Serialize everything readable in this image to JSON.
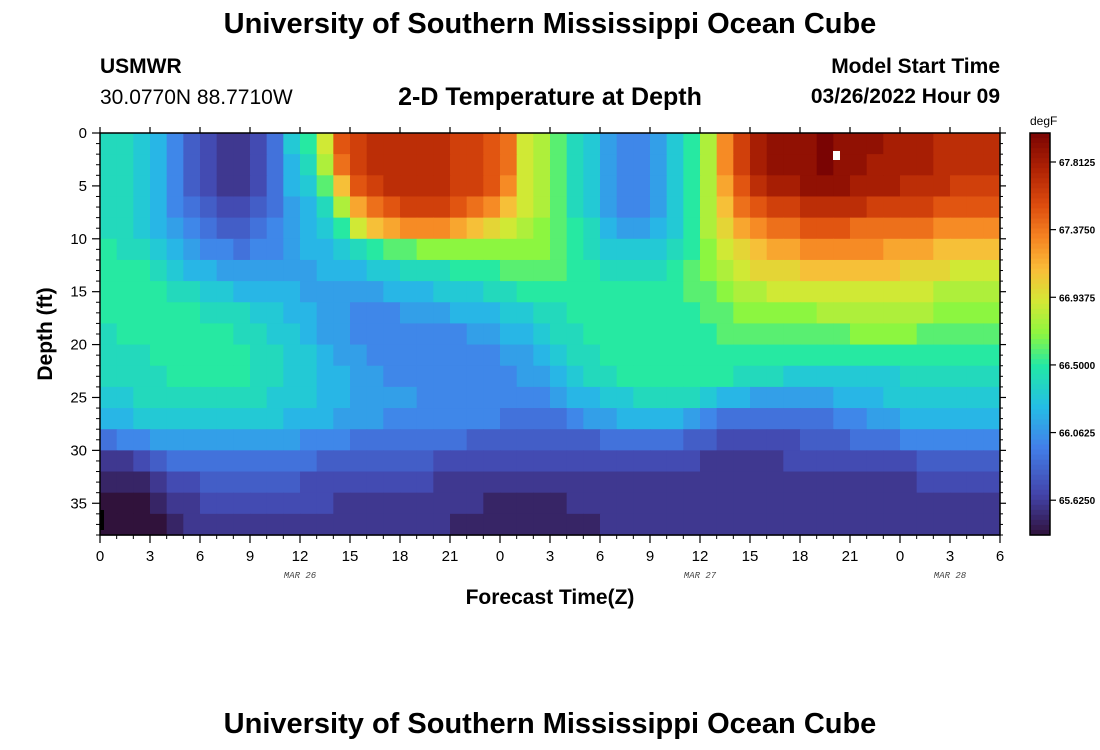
{
  "header": {
    "title": "University of Southern Mississippi Ocean Cube",
    "station": "USMWR",
    "coords": "30.0770N  88.7710W",
    "plot_title": "2-D Temperature at Depth",
    "start_label": "Model Start Time",
    "start_value": "03/26/2022 Hour 09"
  },
  "footer": {
    "title": "University of Southern Mississippi Ocean Cube"
  },
  "chart_data": {
    "type": "heatmap",
    "xlabel": "Forecast Time(Z)",
    "ylabel": "Depth (ft)",
    "colorbar_unit": "degF",
    "x_hours_range": [
      0,
      54
    ],
    "x_tick_labels": [
      "0",
      "3",
      "6",
      "9",
      "12",
      "15",
      "18",
      "21",
      "0",
      "3",
      "6",
      "9",
      "12",
      "15",
      "18",
      "21",
      "0",
      "3",
      "6"
    ],
    "date_labels": [
      {
        "label": "MAR 26",
        "hour": 12
      },
      {
        "label": "MAR 27",
        "hour": 36
      },
      {
        "label": "MAR 28",
        "hour": 51
      }
    ],
    "ylim": [
      0,
      38
    ],
    "y_ticks": [
      0,
      5,
      10,
      15,
      20,
      25,
      30,
      35
    ],
    "colorbar_ticks": [
      "67.8125",
      "67.3750",
      "66.9375",
      "66.5000",
      "66.0625",
      "65.6250"
    ],
    "colorbar_tick_values": [
      67.8125,
      67.375,
      66.9375,
      66.5,
      66.0625,
      65.625
    ],
    "colorbar_range": [
      65.4,
      68.0
    ],
    "grid_hours_start": 0,
    "grid_hours_step": 1,
    "grid_depth_start": 0,
    "grid_depth_step": 2,
    "values": [
      [
        66.4,
        66.4,
        66.3,
        66.2,
        66.0,
        65.8,
        65.7,
        65.6,
        65.6,
        65.7,
        65.9,
        66.3,
        66.5,
        66.9,
        67.5,
        67.6,
        67.7,
        67.7,
        67.7,
        67.7,
        67.7,
        67.6,
        67.6,
        67.5,
        67.4,
        66.9,
        66.8,
        66.6,
        66.4,
        66.3,
        66.1,
        66.0,
        66.0,
        66.1,
        66.3,
        66.5,
        66.8,
        67.3,
        67.6,
        67.8,
        67.9,
        67.9,
        67.9,
        68.0,
        67.9,
        67.9,
        67.9,
        67.8,
        67.8,
        67.8,
        67.7,
        67.7,
        67.7,
        67.7,
        67.7
      ],
      [
        66.4,
        66.4,
        66.3,
        66.2,
        66.0,
        65.8,
        65.7,
        65.6,
        65.6,
        65.7,
        65.9,
        66.2,
        66.4,
        66.8,
        67.4,
        67.6,
        67.7,
        67.7,
        67.7,
        67.7,
        67.7,
        67.6,
        67.6,
        67.5,
        67.4,
        66.9,
        66.8,
        66.6,
        66.4,
        66.3,
        66.1,
        66.0,
        66.0,
        66.1,
        66.3,
        66.5,
        66.8,
        67.3,
        67.6,
        67.8,
        67.9,
        67.9,
        67.9,
        68.0,
        67.9,
        67.9,
        67.8,
        67.8,
        67.8,
        67.8,
        67.7,
        67.7,
        67.7,
        67.7,
        67.7
      ],
      [
        66.4,
        66.4,
        66.3,
        66.2,
        66.0,
        65.8,
        65.7,
        65.6,
        65.6,
        65.7,
        65.9,
        66.2,
        66.3,
        66.6,
        67.1,
        67.5,
        67.6,
        67.7,
        67.7,
        67.7,
        67.7,
        67.6,
        67.6,
        67.5,
        67.3,
        66.9,
        66.8,
        66.6,
        66.4,
        66.3,
        66.1,
        66.0,
        66.0,
        66.1,
        66.3,
        66.5,
        66.8,
        67.2,
        67.5,
        67.7,
        67.8,
        67.8,
        67.9,
        67.9,
        67.9,
        67.8,
        67.8,
        67.8,
        67.7,
        67.7,
        67.7,
        67.6,
        67.6,
        67.6,
        67.6
      ],
      [
        66.4,
        66.4,
        66.3,
        66.2,
        66.0,
        65.9,
        65.8,
        65.7,
        65.7,
        65.8,
        65.9,
        66.1,
        66.2,
        66.4,
        66.8,
        67.2,
        67.4,
        67.5,
        67.6,
        67.6,
        67.6,
        67.5,
        67.4,
        67.3,
        67.1,
        66.9,
        66.8,
        66.6,
        66.4,
        66.3,
        66.1,
        66.0,
        66.0,
        66.1,
        66.3,
        66.5,
        66.8,
        67.1,
        67.4,
        67.5,
        67.6,
        67.6,
        67.7,
        67.7,
        67.7,
        67.7,
        67.6,
        67.6,
        67.6,
        67.6,
        67.5,
        67.5,
        67.5,
        67.5,
        67.5
      ],
      [
        66.4,
        66.4,
        66.3,
        66.2,
        66.1,
        66.0,
        65.9,
        65.8,
        65.8,
        65.9,
        66.0,
        66.1,
        66.2,
        66.3,
        66.5,
        66.9,
        67.1,
        67.2,
        67.3,
        67.3,
        67.3,
        67.2,
        67.1,
        67.0,
        66.9,
        66.8,
        66.7,
        66.6,
        66.5,
        66.4,
        66.2,
        66.1,
        66.1,
        66.2,
        66.3,
        66.5,
        66.8,
        67.0,
        67.2,
        67.3,
        67.4,
        67.4,
        67.5,
        67.5,
        67.5,
        67.4,
        67.4,
        67.4,
        67.4,
        67.4,
        67.3,
        67.3,
        67.3,
        67.3,
        67.3
      ],
      [
        66.5,
        66.4,
        66.4,
        66.3,
        66.2,
        66.1,
        66.0,
        66.0,
        65.9,
        66.0,
        66.0,
        66.1,
        66.2,
        66.2,
        66.3,
        66.4,
        66.5,
        66.6,
        66.6,
        66.7,
        66.7,
        66.7,
        66.7,
        66.7,
        66.7,
        66.7,
        66.7,
        66.6,
        66.5,
        66.4,
        66.3,
        66.3,
        66.3,
        66.3,
        66.4,
        66.5,
        66.7,
        66.9,
        67.0,
        67.1,
        67.2,
        67.2,
        67.3,
        67.3,
        67.3,
        67.3,
        67.3,
        67.2,
        67.2,
        67.2,
        67.1,
        67.1,
        67.1,
        67.1,
        67.1
      ],
      [
        66.5,
        66.5,
        66.5,
        66.4,
        66.3,
        66.2,
        66.2,
        66.1,
        66.1,
        66.1,
        66.1,
        66.1,
        66.1,
        66.2,
        66.2,
        66.2,
        66.3,
        66.3,
        66.4,
        66.4,
        66.4,
        66.5,
        66.5,
        66.5,
        66.6,
        66.6,
        66.6,
        66.6,
        66.5,
        66.5,
        66.4,
        66.4,
        66.4,
        66.4,
        66.5,
        66.6,
        66.7,
        66.8,
        66.9,
        67.0,
        67.0,
        67.0,
        67.1,
        67.1,
        67.1,
        67.1,
        67.1,
        67.1,
        67.0,
        67.0,
        67.0,
        66.9,
        66.9,
        66.9,
        66.9
      ],
      [
        66.5,
        66.5,
        66.5,
        66.5,
        66.4,
        66.4,
        66.3,
        66.3,
        66.2,
        66.2,
        66.2,
        66.2,
        66.1,
        66.1,
        66.1,
        66.1,
        66.1,
        66.2,
        66.2,
        66.2,
        66.3,
        66.3,
        66.3,
        66.4,
        66.4,
        66.5,
        66.5,
        66.5,
        66.5,
        66.5,
        66.5,
        66.5,
        66.5,
        66.5,
        66.5,
        66.6,
        66.6,
        66.7,
        66.8,
        66.8,
        66.9,
        66.9,
        66.9,
        66.9,
        66.9,
        66.9,
        66.9,
        66.9,
        66.9,
        66.9,
        66.8,
        66.8,
        66.8,
        66.8,
        66.8
      ],
      [
        66.5,
        66.5,
        66.5,
        66.5,
        66.5,
        66.5,
        66.4,
        66.4,
        66.4,
        66.3,
        66.3,
        66.2,
        66.2,
        66.1,
        66.1,
        66.0,
        66.0,
        66.0,
        66.1,
        66.1,
        66.1,
        66.2,
        66.2,
        66.2,
        66.3,
        66.3,
        66.4,
        66.4,
        66.5,
        66.5,
        66.5,
        66.5,
        66.5,
        66.5,
        66.5,
        66.5,
        66.6,
        66.6,
        66.7,
        66.7,
        66.7,
        66.7,
        66.7,
        66.8,
        66.8,
        66.8,
        66.8,
        66.8,
        66.8,
        66.8,
        66.7,
        66.7,
        66.7,
        66.7,
        66.7
      ],
      [
        66.4,
        66.5,
        66.5,
        66.5,
        66.5,
        66.5,
        66.5,
        66.5,
        66.4,
        66.4,
        66.3,
        66.3,
        66.2,
        66.1,
        66.1,
        66.0,
        66.0,
        66.0,
        66.0,
        66.0,
        66.0,
        66.0,
        66.1,
        66.1,
        66.2,
        66.2,
        66.3,
        66.4,
        66.4,
        66.5,
        66.5,
        66.5,
        66.5,
        66.5,
        66.5,
        66.5,
        66.5,
        66.6,
        66.6,
        66.6,
        66.6,
        66.6,
        66.6,
        66.6,
        66.6,
        66.7,
        66.7,
        66.7,
        66.7,
        66.6,
        66.6,
        66.6,
        66.6,
        66.6,
        66.6
      ],
      [
        66.4,
        66.4,
        66.4,
        66.5,
        66.5,
        66.5,
        66.5,
        66.5,
        66.5,
        66.4,
        66.4,
        66.3,
        66.3,
        66.2,
        66.1,
        66.1,
        66.0,
        66.0,
        66.0,
        66.0,
        66.0,
        66.0,
        66.0,
        66.0,
        66.1,
        66.1,
        66.2,
        66.3,
        66.4,
        66.4,
        66.5,
        66.5,
        66.5,
        66.5,
        66.5,
        66.5,
        66.5,
        66.5,
        66.5,
        66.5,
        66.5,
        66.5,
        66.5,
        66.5,
        66.5,
        66.5,
        66.5,
        66.5,
        66.5,
        66.5,
        66.5,
        66.5,
        66.5,
        66.5,
        66.5
      ],
      [
        66.4,
        66.4,
        66.4,
        66.4,
        66.5,
        66.5,
        66.5,
        66.5,
        66.5,
        66.4,
        66.4,
        66.3,
        66.3,
        66.2,
        66.2,
        66.1,
        66.1,
        66.0,
        66.0,
        66.0,
        66.0,
        66.0,
        66.0,
        66.0,
        66.0,
        66.1,
        66.1,
        66.2,
        66.3,
        66.4,
        66.4,
        66.5,
        66.5,
        66.5,
        66.5,
        66.5,
        66.5,
        66.5,
        66.4,
        66.4,
        66.4,
        66.3,
        66.3,
        66.3,
        66.3,
        66.3,
        66.3,
        66.3,
        66.4,
        66.4,
        66.4,
        66.4,
        66.4,
        66.4,
        66.4
      ],
      [
        66.3,
        66.3,
        66.4,
        66.4,
        66.4,
        66.4,
        66.4,
        66.4,
        66.4,
        66.4,
        66.3,
        66.3,
        66.3,
        66.2,
        66.2,
        66.1,
        66.1,
        66.1,
        66.1,
        66.0,
        66.0,
        66.0,
        66.0,
        66.0,
        66.0,
        66.0,
        66.0,
        66.1,
        66.2,
        66.2,
        66.3,
        66.3,
        66.4,
        66.4,
        66.4,
        66.4,
        66.3,
        66.2,
        66.2,
        66.1,
        66.1,
        66.1,
        66.1,
        66.1,
        66.2,
        66.2,
        66.2,
        66.3,
        66.3,
        66.3,
        66.3,
        66.3,
        66.3,
        66.3,
        66.3
      ],
      [
        66.2,
        66.2,
        66.3,
        66.3,
        66.3,
        66.3,
        66.3,
        66.3,
        66.3,
        66.3,
        66.3,
        66.2,
        66.2,
        66.2,
        66.1,
        66.1,
        66.1,
        66.0,
        66.0,
        66.0,
        66.0,
        66.0,
        66.0,
        66.0,
        65.9,
        65.9,
        65.9,
        65.9,
        66.0,
        66.1,
        66.1,
        66.2,
        66.2,
        66.2,
        66.2,
        66.1,
        66.0,
        65.9,
        65.9,
        65.9,
        65.9,
        65.9,
        65.9,
        65.9,
        66.0,
        66.0,
        66.1,
        66.1,
        66.2,
        66.2,
        66.2,
        66.2,
        66.2,
        66.2,
        66.2
      ],
      [
        65.9,
        66.0,
        66.0,
        66.1,
        66.1,
        66.1,
        66.1,
        66.1,
        66.1,
        66.1,
        66.1,
        66.1,
        66.0,
        66.0,
        66.0,
        65.9,
        65.9,
        65.9,
        65.9,
        65.9,
        65.9,
        65.9,
        65.8,
        65.8,
        65.8,
        65.8,
        65.8,
        65.8,
        65.8,
        65.8,
        65.9,
        65.9,
        65.9,
        65.9,
        65.9,
        65.8,
        65.8,
        65.7,
        65.7,
        65.7,
        65.7,
        65.7,
        65.8,
        65.8,
        65.8,
        65.9,
        65.9,
        65.9,
        66.0,
        66.0,
        66.0,
        66.0,
        66.0,
        66.0,
        66.0
      ],
      [
        65.6,
        65.6,
        65.7,
        65.8,
        65.9,
        65.9,
        65.9,
        65.9,
        65.9,
        65.9,
        65.9,
        65.9,
        65.9,
        65.8,
        65.8,
        65.8,
        65.8,
        65.8,
        65.8,
        65.8,
        65.7,
        65.7,
        65.7,
        65.7,
        65.7,
        65.7,
        65.7,
        65.7,
        65.7,
        65.7,
        65.7,
        65.7,
        65.7,
        65.7,
        65.7,
        65.7,
        65.6,
        65.6,
        65.6,
        65.6,
        65.6,
        65.7,
        65.7,
        65.7,
        65.7,
        65.7,
        65.7,
        65.7,
        65.7,
        65.8,
        65.8,
        65.8,
        65.8,
        65.8,
        65.8
      ],
      [
        65.5,
        65.5,
        65.5,
        65.6,
        65.7,
        65.7,
        65.8,
        65.8,
        65.8,
        65.8,
        65.8,
        65.8,
        65.7,
        65.7,
        65.7,
        65.7,
        65.7,
        65.7,
        65.7,
        65.7,
        65.6,
        65.6,
        65.6,
        65.6,
        65.6,
        65.6,
        65.6,
        65.6,
        65.6,
        65.6,
        65.6,
        65.6,
        65.6,
        65.6,
        65.6,
        65.6,
        65.6,
        65.6,
        65.6,
        65.6,
        65.6,
        65.6,
        65.6,
        65.6,
        65.6,
        65.6,
        65.6,
        65.6,
        65.6,
        65.7,
        65.7,
        65.7,
        65.7,
        65.7,
        65.7
      ],
      [
        65.4,
        65.4,
        65.4,
        65.5,
        65.6,
        65.6,
        65.7,
        65.7,
        65.7,
        65.7,
        65.7,
        65.7,
        65.7,
        65.7,
        65.6,
        65.6,
        65.6,
        65.6,
        65.6,
        65.6,
        65.6,
        65.6,
        65.6,
        65.5,
        65.5,
        65.5,
        65.5,
        65.5,
        65.6,
        65.6,
        65.6,
        65.6,
        65.6,
        65.6,
        65.6,
        65.6,
        65.6,
        65.6,
        65.6,
        65.6,
        65.6,
        65.6,
        65.6,
        65.6,
        65.6,
        65.6,
        65.6,
        65.6,
        65.6,
        65.6,
        65.6,
        65.6,
        65.6,
        65.6,
        65.6
      ],
      [
        65.4,
        65.4,
        65.4,
        65.4,
        65.5,
        65.6,
        65.6,
        65.6,
        65.6,
        65.6,
        65.6,
        65.6,
        65.6,
        65.6,
        65.6,
        65.6,
        65.6,
        65.6,
        65.6,
        65.6,
        65.6,
        65.5,
        65.5,
        65.5,
        65.5,
        65.5,
        65.5,
        65.5,
        65.5,
        65.5,
        65.6,
        65.6,
        65.6,
        65.6,
        65.6,
        65.6,
        65.6,
        65.6,
        65.6,
        65.6,
        65.6,
        65.6,
        65.6,
        65.6,
        65.6,
        65.6,
        65.6,
        65.6,
        65.6,
        65.6,
        65.6,
        65.6,
        65.6,
        65.6,
        65.6
      ],
      [
        65.4,
        65.4,
        65.4,
        65.4,
        65.5,
        65.5,
        65.5,
        65.6,
        65.6,
        65.6,
        65.6,
        65.6,
        65.6,
        65.6,
        65.6,
        65.6,
        65.6,
        65.6,
        65.6,
        65.5,
        65.5,
        65.5,
        65.5,
        65.5,
        65.5,
        65.5,
        65.5,
        65.5,
        65.5,
        65.5,
        65.5,
        65.5,
        65.6,
        65.6,
        65.6,
        65.6,
        65.6,
        65.6,
        65.6,
        65.6,
        65.6,
        65.6,
        65.6,
        65.6,
        65.6,
        65.6,
        65.6,
        65.6,
        65.6,
        65.6,
        65.6,
        65.6,
        65.6,
        65.6,
        65.6
      ]
    ]
  }
}
